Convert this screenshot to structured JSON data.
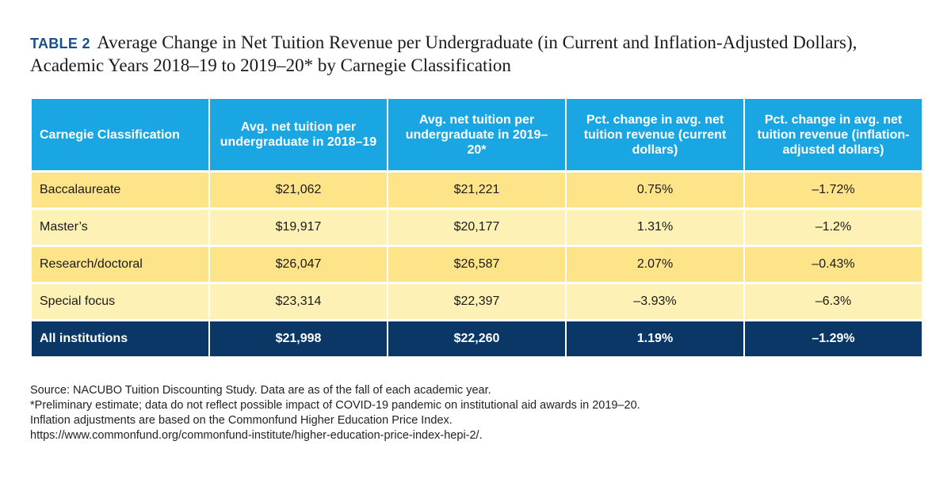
{
  "header": {
    "tag": "TABLE 2",
    "title": "Average Change in Net Tuition Revenue per Undergraduate (in Current and Inflation-Adjusted Dollars), Academic Years 2018–19 to 2019–20* by Carnegie Classification"
  },
  "colors": {
    "header_bg": "#1aa6e3",
    "row_dark": "#fde489",
    "row_light": "#fdf1b5",
    "total_bg": "#0b3766",
    "tag_color": "#1a4f8b"
  },
  "chart_data": {
    "type": "table",
    "title": "Average Change in Net Tuition Revenue per Undergraduate (in Current and Inflation-Adjusted Dollars), Academic Years 2018–19 to 2019–20* by Carnegie Classification",
    "columns": [
      "Carnegie Classification",
      "Avg. net tuition per undergraduate in 2018–19",
      "Avg. net tuition per undergraduate in 2019–20*",
      "Pct. change in avg. net tuition revenue (current dollars)",
      "Pct. change in avg. net tuition revenue (inflation-adjusted dollars)"
    ],
    "rows": [
      [
        "Baccalaureate",
        "$21,062",
        "$21,221",
        "0.75%",
        "–1.72%"
      ],
      [
        "Master’s",
        "$19,917",
        "$20,177",
        "1.31%",
        "–1.2%"
      ],
      [
        "Research/doctoral",
        "$26,047",
        "$26,587",
        "2.07%",
        "–0.43%"
      ],
      [
        "Special focus",
        "$23,314",
        "$22,397",
        "–3.93%",
        "–6.3%"
      ]
    ],
    "total": [
      "All institutions",
      "$21,998",
      "$22,260",
      "1.19%",
      "–1.29%"
    ]
  },
  "notes": [
    "Source: NACUBO Tuition Discounting Study. Data are as of the fall of each academic year.",
    "*Preliminary estimate; data do not reflect possible impact of COVID-19 pandemic on institutional aid awards in 2019–20.",
    "Inflation adjustments are based on the Commonfund Higher Education Price Index.",
    "https://www.commonfund.org/commonfund-institute/higher-education-price-index-hepi-2/."
  ]
}
